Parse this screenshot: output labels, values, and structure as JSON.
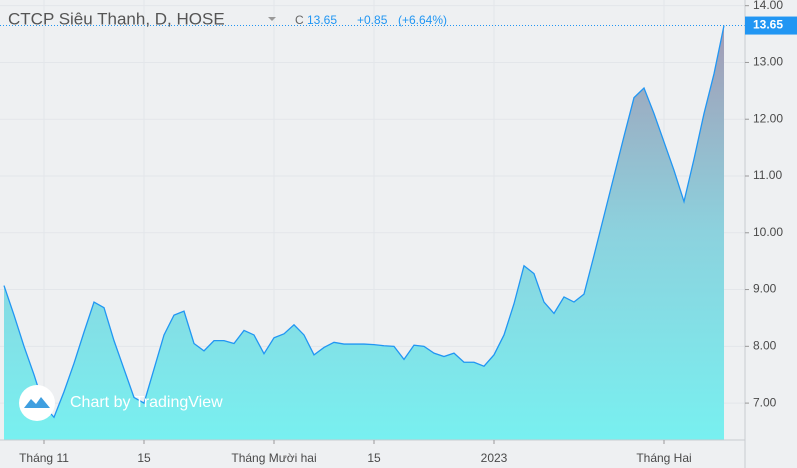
{
  "chart_data": {
    "type": "area",
    "title": "CTCP Siêu Thanh, D, HOSE",
    "header": {
      "close_prefix": "C",
      "change": "+0.85",
      "change_pct": "(+6.64%)"
    },
    "watermark": "Chart by TradingView",
    "color": "#2196f3",
    "categories": [
      null,
      null,
      null,
      null,
      "Tháng 11",
      null,
      null,
      null,
      null,
      null,
      null,
      null,
      null,
      null,
      "15",
      null,
      null,
      null,
      null,
      null,
      null,
      null,
      null,
      null,
      null,
      null,
      null,
      "Tháng Mười hai",
      null,
      null,
      null,
      null,
      null,
      null,
      null,
      null,
      null,
      "15",
      null,
      null,
      null,
      null,
      null,
      null,
      null,
      null,
      null,
      null,
      null,
      "2023",
      null,
      null,
      null,
      null,
      null,
      null,
      null,
      null,
      null,
      null,
      null,
      null,
      null,
      null,
      null,
      null,
      "Tháng Hai",
      null,
      null,
      null,
      null,
      null,
      null
    ],
    "values": [
      9.07,
      8.55,
      8.0,
      7.5,
      6.95,
      6.75,
      7.2,
      7.7,
      8.25,
      8.78,
      8.68,
      8.1,
      7.6,
      7.1,
      7.0,
      7.6,
      8.2,
      8.55,
      8.62,
      8.05,
      7.92,
      8.1,
      8.1,
      8.05,
      8.28,
      8.2,
      7.87,
      8.15,
      8.22,
      8.38,
      8.2,
      7.85,
      7.98,
      8.07,
      8.04,
      8.04,
      8.04,
      8.03,
      8.01,
      8.0,
      7.77,
      8.02,
      8.0,
      7.88,
      7.82,
      7.88,
      7.72,
      7.72,
      7.65,
      7.85,
      8.2,
      8.75,
      9.42,
      9.28,
      8.78,
      8.58,
      8.87,
      8.78,
      8.92,
      9.6,
      10.3,
      11.0,
      11.7,
      12.38,
      12.55,
      12.1,
      11.6,
      11.1,
      10.55,
      11.3,
      12.1,
      12.8,
      13.65
    ],
    "ylim": [
      6.35,
      14.1
    ],
    "yticks": [
      {
        "value": 7,
        "label": "7.00"
      },
      {
        "value": 8,
        "label": "8.00"
      },
      {
        "value": 9,
        "label": "9.00"
      },
      {
        "value": 10,
        "label": "10.00"
      },
      {
        "value": 11,
        "label": "11.00"
      },
      {
        "value": 12,
        "label": "12.00"
      },
      {
        "value": 13,
        "label": "13.00"
      },
      {
        "value": 14,
        "label": "14.00"
      }
    ],
    "grid": true
  }
}
